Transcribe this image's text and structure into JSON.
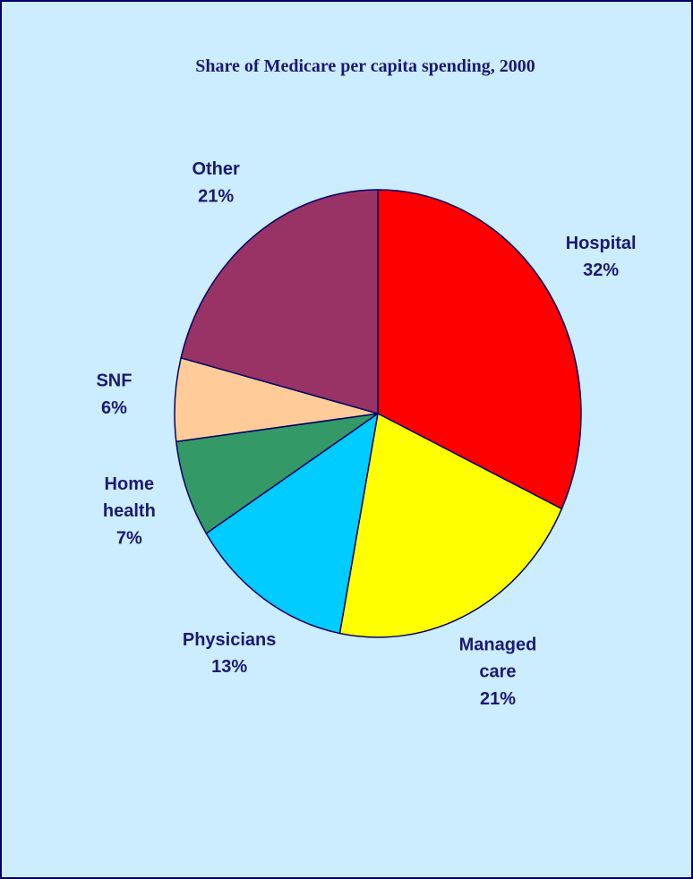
{
  "chart_data": {
    "type": "pie",
    "title": "Share of Medicare per capita spending, 2000",
    "categories": [
      "Hospital",
      "Managed care",
      "Physicians",
      "Home health",
      "SNF",
      "Other"
    ],
    "values": [
      32,
      21,
      13,
      7,
      6,
      21
    ],
    "value_labels": [
      "32%",
      "21%",
      "13%",
      "7%",
      "6%",
      "21%"
    ],
    "colors": [
      "#ff0000",
      "#ffff00",
      "#00ccff",
      "#339966",
      "#ffcc99",
      "#993366"
    ]
  }
}
